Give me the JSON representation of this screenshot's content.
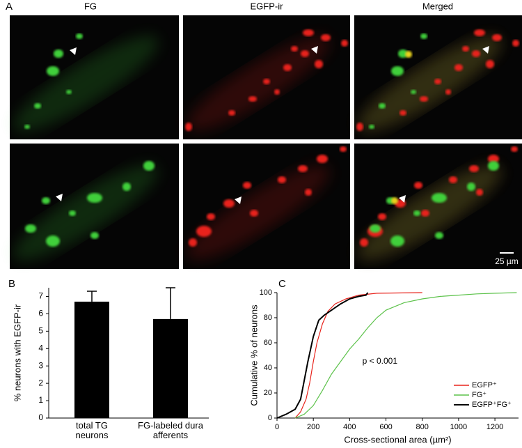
{
  "panel_a": {
    "label": "A",
    "columns": [
      "FG",
      "EGFP-ir",
      "Merged"
    ],
    "scale_bar": "25 µm"
  },
  "chart_data": [
    {
      "label": "B",
      "type": "bar",
      "ylabel": "% neurons with EGFP-ir",
      "categories": [
        "total TG neurons",
        "FG-labeled dura afferents"
      ],
      "values": [
        6.7,
        5.7
      ],
      "errors": [
        0.6,
        1.8
      ],
      "color": "#000000",
      "ylim": [
        0,
        7.5
      ],
      "yticks": [
        0,
        1,
        2,
        3,
        4,
        5,
        6,
        7
      ]
    },
    {
      "label": "C",
      "type": "line",
      "xlabel": "Cross-sectional area (µm²)",
      "ylabel": "Cumulative % of neurons",
      "annotation": "p < 0.001",
      "legend": "lower right",
      "xlim": [
        0,
        1330
      ],
      "xticks": [
        0,
        200,
        400,
        600,
        800,
        1000,
        1200
      ],
      "ylim": [
        0,
        100
      ],
      "yticks": [
        0,
        20,
        40,
        60,
        80,
        100
      ],
      "series": [
        {
          "name": "EGFP⁺",
          "color": "#e8231c",
          "x": [
            100,
            130,
            160,
            180,
            200,
            220,
            250,
            280,
            320,
            380,
            450,
            550,
            800
          ],
          "values": [
            0,
            5,
            15,
            28,
            45,
            60,
            75,
            85,
            91,
            95,
            98,
            99.5,
            100
          ]
        },
        {
          "name": "FG⁺",
          "color": "#5cc24a",
          "x": [
            100,
            150,
            200,
            250,
            300,
            350,
            400,
            450,
            500,
            550,
            600,
            700,
            800,
            900,
            1000,
            1100,
            1200,
            1320
          ],
          "values": [
            0,
            3,
            10,
            22,
            35,
            45,
            55,
            63,
            72,
            80,
            86,
            92,
            95,
            97,
            98,
            99,
            99.5,
            100
          ]
        },
        {
          "name": "EGFP⁺FG⁺",
          "color": "#000000",
          "x": [
            0,
            50,
            100,
            130,
            150,
            170,
            200,
            230,
            260,
            300,
            350,
            400,
            450,
            490,
            500
          ],
          "values": [
            0,
            3,
            7,
            15,
            30,
            45,
            65,
            78,
            82,
            86,
            91,
            95,
            97,
            98,
            100
          ]
        }
      ]
    }
  ]
}
